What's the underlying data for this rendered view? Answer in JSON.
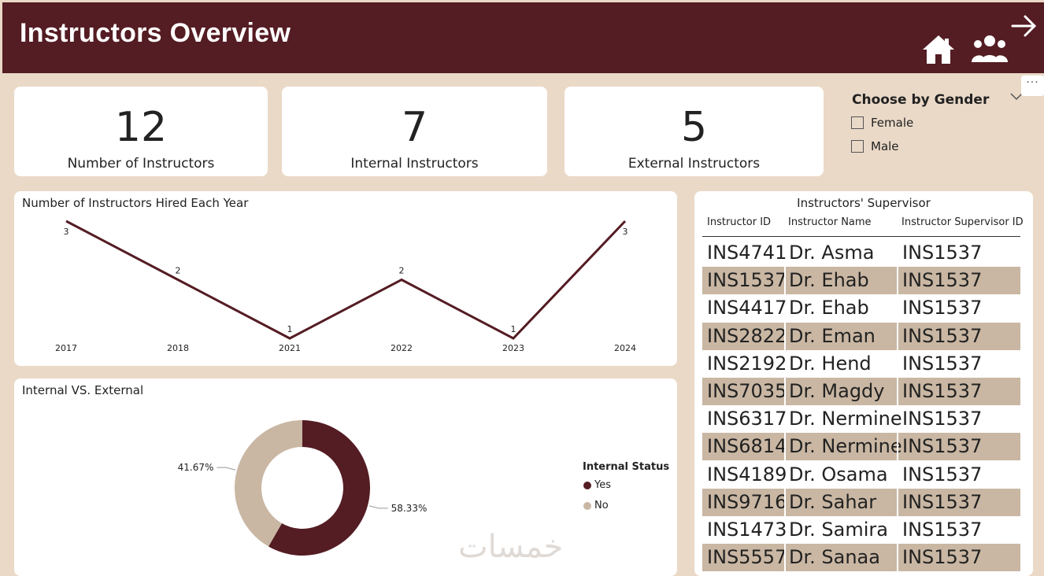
{
  "header": {
    "title": "Instructors Overview",
    "icons": [
      "home-icon",
      "people-icon",
      "arrow-right-icon"
    ]
  },
  "kpis": [
    {
      "value": "12",
      "label": "Number of Instructors"
    },
    {
      "value": "7",
      "label": "Internal Instructors"
    },
    {
      "value": "5",
      "label": "External Instructors"
    }
  ],
  "slicer": {
    "title": "Choose by Gender",
    "options": [
      "Female",
      "Male"
    ]
  },
  "line_chart": {
    "title": "Number of Instructors Hired Each Year"
  },
  "donut_chart": {
    "title": "Internal VS. External",
    "legend_title": "Internal Status",
    "legend": [
      "Yes",
      "No"
    ]
  },
  "chart_data": [
    {
      "type": "line",
      "title": "Number of Instructors Hired Each Year",
      "categories": [
        "2017",
        "2018",
        "2021",
        "2022",
        "2023",
        "2024"
      ],
      "values": [
        3,
        2,
        1,
        2,
        1,
        3
      ],
      "ylim": [
        1,
        3
      ],
      "grid": false,
      "color": "#541c23"
    },
    {
      "type": "pie",
      "title": "Internal VS. External",
      "legend_title": "Internal Status",
      "legend_position": "right",
      "labels": [
        "Yes",
        "No"
      ],
      "values": [
        58.33,
        41.67
      ],
      "value_labels": [
        "58.33%",
        "41.67%"
      ],
      "colors": [
        "#541c23",
        "#c9b7a3"
      ]
    }
  ],
  "table": {
    "title": "Instructors' Supervisor",
    "columns": [
      "Instructor ID",
      "Instructor Name",
      "Instructor Supervisor ID"
    ],
    "rows": [
      [
        "INS4741",
        "Dr. Asma",
        "INS1537"
      ],
      [
        "INS1537",
        "Dr. Ehab",
        "INS1537"
      ],
      [
        "INS4417",
        "Dr. Ehab",
        "INS1537"
      ],
      [
        "INS2822",
        "Dr. Eman",
        "INS1537"
      ],
      [
        "INS2192",
        "Dr. Hend",
        "INS1537"
      ],
      [
        "INS7035",
        "Dr. Magdy",
        "INS1537"
      ],
      [
        "INS6317",
        "Dr. Nermine",
        "INS1537"
      ],
      [
        "INS6814",
        "Dr. Nermine",
        "INS1537"
      ],
      [
        "INS4189",
        "Dr. Osama",
        "INS1537"
      ],
      [
        "INS9716",
        "Dr. Sahar",
        "INS1537"
      ],
      [
        "INS1473",
        "Dr. Samira",
        "INS1537"
      ],
      [
        "INS5557",
        "Dr. Sanaa",
        "INS1537"
      ]
    ]
  },
  "watermark": "خمسات",
  "colors": {
    "header": "#541c23",
    "background": "#ead9c7",
    "accent": "#541c23",
    "secondary": "#c9b7a3"
  }
}
